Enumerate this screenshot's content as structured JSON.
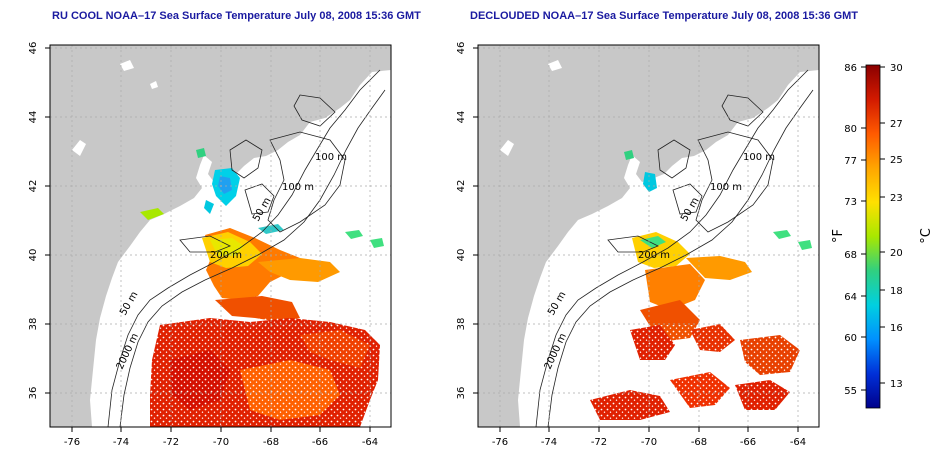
{
  "panels": [
    {
      "title": "RU COOL NOAA–17 Sea Surface Temperature July 08, 2008 15:36 GMT",
      "x_ticks": [
        "-76",
        "-74",
        "-72",
        "-70",
        "-68",
        "-66",
        "-64"
      ],
      "y_ticks": [
        "46",
        "44",
        "42",
        "40",
        "38",
        "36"
      ],
      "contour_labels": [
        "100 m",
        "100 m",
        "50 m",
        "200 m",
        "50 m",
        "2000 m"
      ]
    },
    {
      "title": "DECLOUDED NOAA–17 Sea Surface Temperature July 08, 2008 15:36 GMT",
      "x_ticks": [
        "-76",
        "-74",
        "-72",
        "-70",
        "-68",
        "-66",
        "-64"
      ],
      "y_ticks": [
        "46",
        "44",
        "42",
        "40",
        "38",
        "36"
      ],
      "contour_labels": [
        "100 m",
        "100 m",
        "50 m",
        "200 m",
        "50 m",
        "2000 m"
      ]
    }
  ],
  "colorbar": {
    "f_label": "°F",
    "c_label": "°C",
    "f_ticks": [
      "86",
      "80",
      "77",
      "73",
      "68",
      "64",
      "60",
      "55"
    ],
    "c_ticks": [
      "30",
      "27",
      "25",
      "23",
      "20",
      "18",
      "16",
      "13"
    ],
    "colors": [
      "#8b0000",
      "#d21a00",
      "#ff5a00",
      "#ffa500",
      "#ffe000",
      "#a8e800",
      "#30d080",
      "#00d0e0",
      "#0090ff",
      "#0030d8",
      "#00008b"
    ]
  },
  "colors": {
    "land": "#c8c8c8",
    "ocean": "#ffffff",
    "title": "#1a1aa0",
    "grid": "#aaaaaa"
  }
}
